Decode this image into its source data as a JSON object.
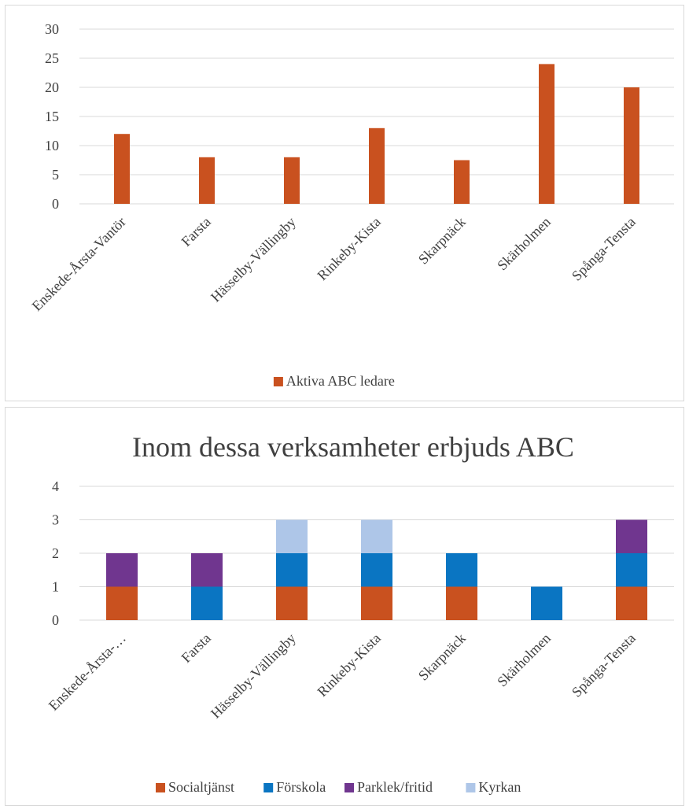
{
  "chart_data": [
    {
      "type": "bar",
      "title": "",
      "xlabel": "",
      "ylabel": "",
      "categories": [
        "Enskede-Årsta-Vantör",
        "Farsta",
        "Hässelby-Vällingby",
        "Rinkeby-Kista",
        "Skarpnäck",
        "Skärholmen",
        "Spånga-Tensta"
      ],
      "series": [
        {
          "name": "Aktiva ABC ledare",
          "values": [
            12,
            8,
            8,
            13,
            7.5,
            24,
            20
          ],
          "color": "#c9511f"
        }
      ],
      "ylim": [
        0,
        30
      ],
      "yticks": [
        "0",
        "5",
        "10",
        "15",
        "20",
        "25",
        "30"
      ],
      "grid": true,
      "legend_position": "bottom"
    },
    {
      "type": "bar",
      "stacked": true,
      "title": "Inom dessa verksamheter erbjuds ABC",
      "xlabel": "",
      "ylabel": "",
      "categories": [
        "Enskede-Årsta-…",
        "Farsta",
        "Hässelby-Vällingby",
        "Rinkeby-Kista",
        "Skarpnäck",
        "Skärholmen",
        "Spånga-Tensta"
      ],
      "series": [
        {
          "name": "Socialtjänst",
          "values": [
            1,
            0,
            1,
            1,
            1,
            0,
            1
          ],
          "color": "#c9511f"
        },
        {
          "name": "Förskola",
          "values": [
            0,
            1,
            1,
            1,
            1,
            1,
            1
          ],
          "color": "#0a75c2"
        },
        {
          "name": "Parklek/fritid",
          "values": [
            1,
            1,
            0,
            0,
            0,
            0,
            1
          ],
          "color": "#70368f"
        },
        {
          "name": "Kyrkan",
          "values": [
            0,
            0,
            1,
            1,
            0,
            0,
            0
          ],
          "color": "#aec6e8"
        }
      ],
      "ylim": [
        0,
        4
      ],
      "yticks": [
        "0",
        "1",
        "2",
        "3",
        "4"
      ],
      "grid": true,
      "legend_position": "bottom"
    }
  ]
}
